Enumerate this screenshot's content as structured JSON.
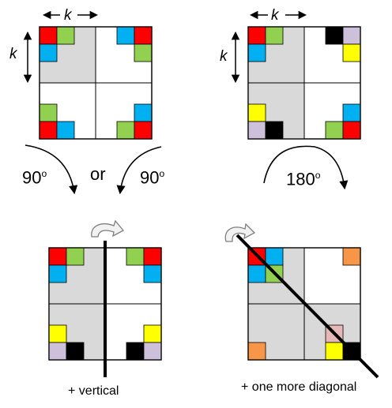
{
  "labels": {
    "k_symbol": "k",
    "degree_mark": "o",
    "rotate_90_left": "90",
    "or_word": "or",
    "rotate_90_right": "90",
    "rotate_180": "180",
    "vertical_caption": "+ vertical",
    "diagonal_caption": "+ one more diagonal"
  },
  "colors": {
    "red": "#ff0000",
    "green": "#92d050",
    "blue": "#00b0f0",
    "black": "#000000",
    "lavender": "#ccc0da",
    "yellow": "#ffff00",
    "orange": "#f79646",
    "pink": "#e6b9b8",
    "gray": "#d9d9d9",
    "arrow_fill": "#f2f2f2",
    "arrow_stroke": "#7f7f7f"
  },
  "panels": [
    {
      "id": "panel-90-symmetry",
      "shaded_quadrants": [
        "top-left"
      ],
      "axis_line": "none",
      "corner_cells": [
        {
          "quadrant": "top-left",
          "grid": [
            [
              "red",
              "green"
            ],
            [
              "blue",
              ""
            ]
          ]
        },
        {
          "quadrant": "top-right",
          "grid": [
            [
              "blue",
              "red"
            ],
            [
              "",
              "green"
            ]
          ]
        },
        {
          "quadrant": "bottom-left",
          "grid": [
            [
              "green",
              ""
            ],
            [
              "red",
              "blue"
            ]
          ]
        },
        {
          "quadrant": "bottom-right",
          "grid": [
            [
              "",
              "blue"
            ],
            [
              "green",
              "red"
            ]
          ]
        }
      ]
    },
    {
      "id": "panel-180-symmetry",
      "shaded_quadrants": [
        "top-left",
        "bottom-left"
      ],
      "axis_line": "none",
      "corner_cells": [
        {
          "quadrant": "top-left",
          "grid": [
            [
              "red",
              "green"
            ],
            [
              "blue",
              ""
            ]
          ]
        },
        {
          "quadrant": "top-right",
          "grid": [
            [
              "black",
              "lavender"
            ],
            [
              "",
              "yellow"
            ]
          ]
        },
        {
          "quadrant": "bottom-left",
          "grid": [
            [
              "yellow",
              ""
            ],
            [
              "lavender",
              "black"
            ]
          ]
        },
        {
          "quadrant": "bottom-right",
          "grid": [
            [
              "",
              "blue"
            ],
            [
              "green",
              "red"
            ]
          ]
        }
      ]
    },
    {
      "id": "panel-vertical-reflection",
      "shaded_quadrants": [
        "top-left",
        "bottom-left"
      ],
      "axis_line": "vertical",
      "corner_cells": [
        {
          "quadrant": "top-left",
          "grid": [
            [
              "red",
              "green"
            ],
            [
              "blue",
              ""
            ]
          ]
        },
        {
          "quadrant": "top-right",
          "grid": [
            [
              "green",
              "red"
            ],
            [
              "",
              "blue"
            ]
          ]
        },
        {
          "quadrant": "bottom-left",
          "grid": [
            [
              "yellow",
              ""
            ],
            [
              "lavender",
              "black"
            ]
          ]
        },
        {
          "quadrant": "bottom-right",
          "grid": [
            [
              "",
              "yellow"
            ],
            [
              "black",
              "lavender"
            ]
          ]
        }
      ]
    },
    {
      "id": "panel-diagonal-reflection",
      "shaded_quadrants": [
        "top-left",
        "bottom-left",
        "bottom-right"
      ],
      "axis_line": "diagonal",
      "corner_cells": [
        {
          "quadrant": "top-left",
          "grid": [
            [
              "red",
              "blue"
            ],
            [
              "blue",
              "green"
            ]
          ]
        },
        {
          "quadrant": "top-right",
          "grid": [
            [
              "",
              "orange"
            ],
            [
              "",
              ""
            ]
          ]
        },
        {
          "quadrant": "bottom-left",
          "grid": [
            [
              "",
              ""
            ],
            [
              "orange",
              ""
            ]
          ]
        },
        {
          "quadrant": "bottom-right",
          "grid": [
            [
              "pink",
              ""
            ],
            [
              "yellow",
              "black"
            ]
          ]
        }
      ]
    }
  ]
}
